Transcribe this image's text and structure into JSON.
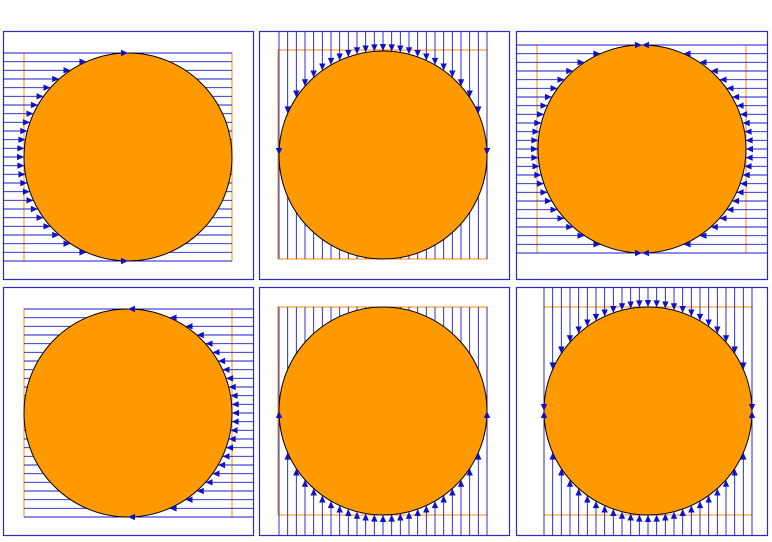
{
  "colors": {
    "frame": "#2b2bc8",
    "lines": "#1a1ad0",
    "arrows": "#1010c8",
    "circle_fill": "#ff9900",
    "circle_stroke": "#000000",
    "inner_square": "#ff8800",
    "background": "#ffffff"
  },
  "panels": [
    {
      "name": "panel-lines-from-left",
      "direction": "from-left",
      "arrow_side": "left-half"
    },
    {
      "name": "panel-lines-from-top",
      "direction": "from-top",
      "arrow_side": "top-half"
    },
    {
      "name": "panel-lines-horizontal-both",
      "direction": "horizontal",
      "arrow_side": "both-halves"
    },
    {
      "name": "panel-lines-from-right",
      "direction": "from-right",
      "arrow_side": "right-half"
    },
    {
      "name": "panel-lines-from-bottom",
      "direction": "from-bottom",
      "arrow_side": "bottom-half"
    },
    {
      "name": "panel-lines-vertical-both",
      "direction": "vertical",
      "arrow_side": "both-halves"
    }
  ]
}
